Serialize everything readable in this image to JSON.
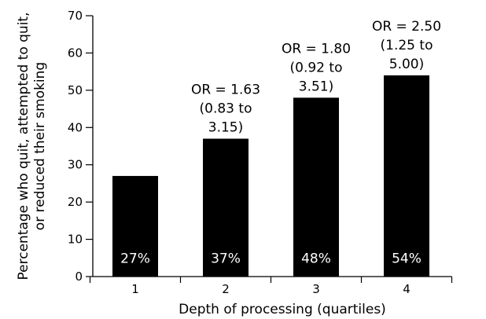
{
  "chart_data": {
    "type": "bar",
    "categories": [
      "1",
      "2",
      "3",
      "4"
    ],
    "values": [
      27,
      37,
      48,
      54
    ],
    "value_labels": [
      "27%",
      "37%",
      "48%",
      "54%"
    ],
    "annotations": [
      null,
      [
        "OR = 1.63",
        "(0.83 to",
        "3.15)"
      ],
      [
        "OR = 1.80",
        "(0.92 to",
        "3.51)"
      ],
      [
        "OR = 2.50",
        "(1.25 to",
        "5.00)"
      ]
    ],
    "title": "",
    "xlabel": "Depth of processing (quartiles)",
    "ylabel_lines": [
      "Percentage who quit, attempted to quit,",
      "or reduced their smoking"
    ],
    "ylim": [
      0,
      70
    ],
    "yticks": [
      0,
      10,
      20,
      30,
      40,
      50,
      60,
      70
    ],
    "grid": false,
    "legend": "none",
    "bar_color": "#000000",
    "label_color": "#ffffff"
  }
}
